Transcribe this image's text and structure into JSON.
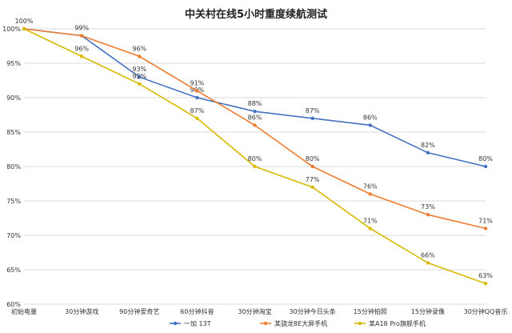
{
  "chart_data": {
    "type": "line",
    "title": "中关村在线5小时重度续航测试",
    "categories": [
      "初始电量",
      "30分钟游戏",
      "90分钟爱奇艺",
      "60分钟抖音",
      "30分钟淘宝",
      "30分钟今日头条",
      "15分钟拍照",
      "15分钟录像",
      "30分钟QQ音乐"
    ],
    "ylim": [
      60,
      100
    ],
    "yticks": [
      60,
      65,
      70,
      75,
      80,
      85,
      90,
      95,
      100
    ],
    "ytick_format": "%",
    "grid": "horizontal",
    "legend_position": "bottom",
    "series": [
      {
        "name": "一加 13T",
        "color": "#4472C4",
        "values": [
          100,
          99,
          93,
          90,
          88,
          87,
          86,
          82,
          80
        ],
        "labels": [
          "100%",
          "99%",
          "93%",
          "90%",
          "88%",
          "87%",
          "86%",
          "82%",
          "80%"
        ]
      },
      {
        "name": "某骁龙8E大屏手机",
        "color": "#ED7D31",
        "values": [
          100,
          99,
          96,
          91,
          86,
          80,
          76,
          73,
          71
        ],
        "labels": [
          "",
          "",
          "96%",
          "91%",
          "86%",
          "80%",
          "76%",
          "73%",
          "71%"
        ]
      },
      {
        "name": "某A18 Pro旗舰手机",
        "color": "#D9B900",
        "values": [
          100,
          96,
          92,
          87,
          80,
          77,
          71,
          66,
          63
        ],
        "labels": [
          "",
          "96%",
          "92%",
          "87%",
          "80%",
          "77%",
          "71%",
          "66%",
          "63%"
        ]
      }
    ]
  }
}
